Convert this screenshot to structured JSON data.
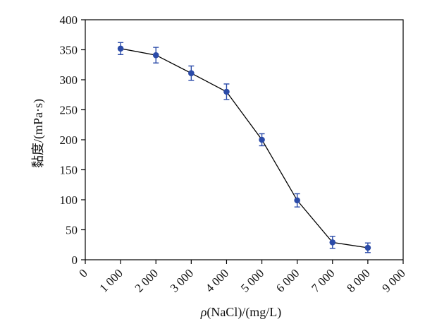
{
  "chart_data": {
    "type": "line",
    "title": "",
    "xlabel_symbol": "ρ",
    "xlabel_rest": "(NaCl)/(mg/L)",
    "ylabel": "黏度/(mPa·s)",
    "xlim": [
      0,
      9000
    ],
    "ylim": [
      0,
      400
    ],
    "x_ticks": [
      0,
      1000,
      2000,
      3000,
      4000,
      5000,
      6000,
      7000,
      8000,
      9000
    ],
    "x_tick_labels": [
      "0",
      "1 000",
      "2 000",
      "3 000",
      "4 000",
      "5 000",
      "6 000",
      "7 000",
      "8 000",
      "9 000"
    ],
    "y_ticks": [
      0,
      50,
      100,
      150,
      200,
      250,
      300,
      350,
      400
    ],
    "y_tick_labels": [
      "0",
      "50",
      "100",
      "150",
      "200",
      "250",
      "300",
      "350",
      "400"
    ],
    "grid": false,
    "legend": "none",
    "series": [
      {
        "x": [
          1000,
          2000,
          3000,
          4000,
          5000,
          6000,
          7000,
          8000
        ],
        "y": [
          352,
          341,
          311,
          280,
          200,
          99,
          29,
          20
        ],
        "error": [
          10,
          13,
          12,
          13,
          10,
          11,
          10,
          8
        ],
        "color": "#2b4ba8",
        "line_color": "#000000"
      }
    ]
  }
}
